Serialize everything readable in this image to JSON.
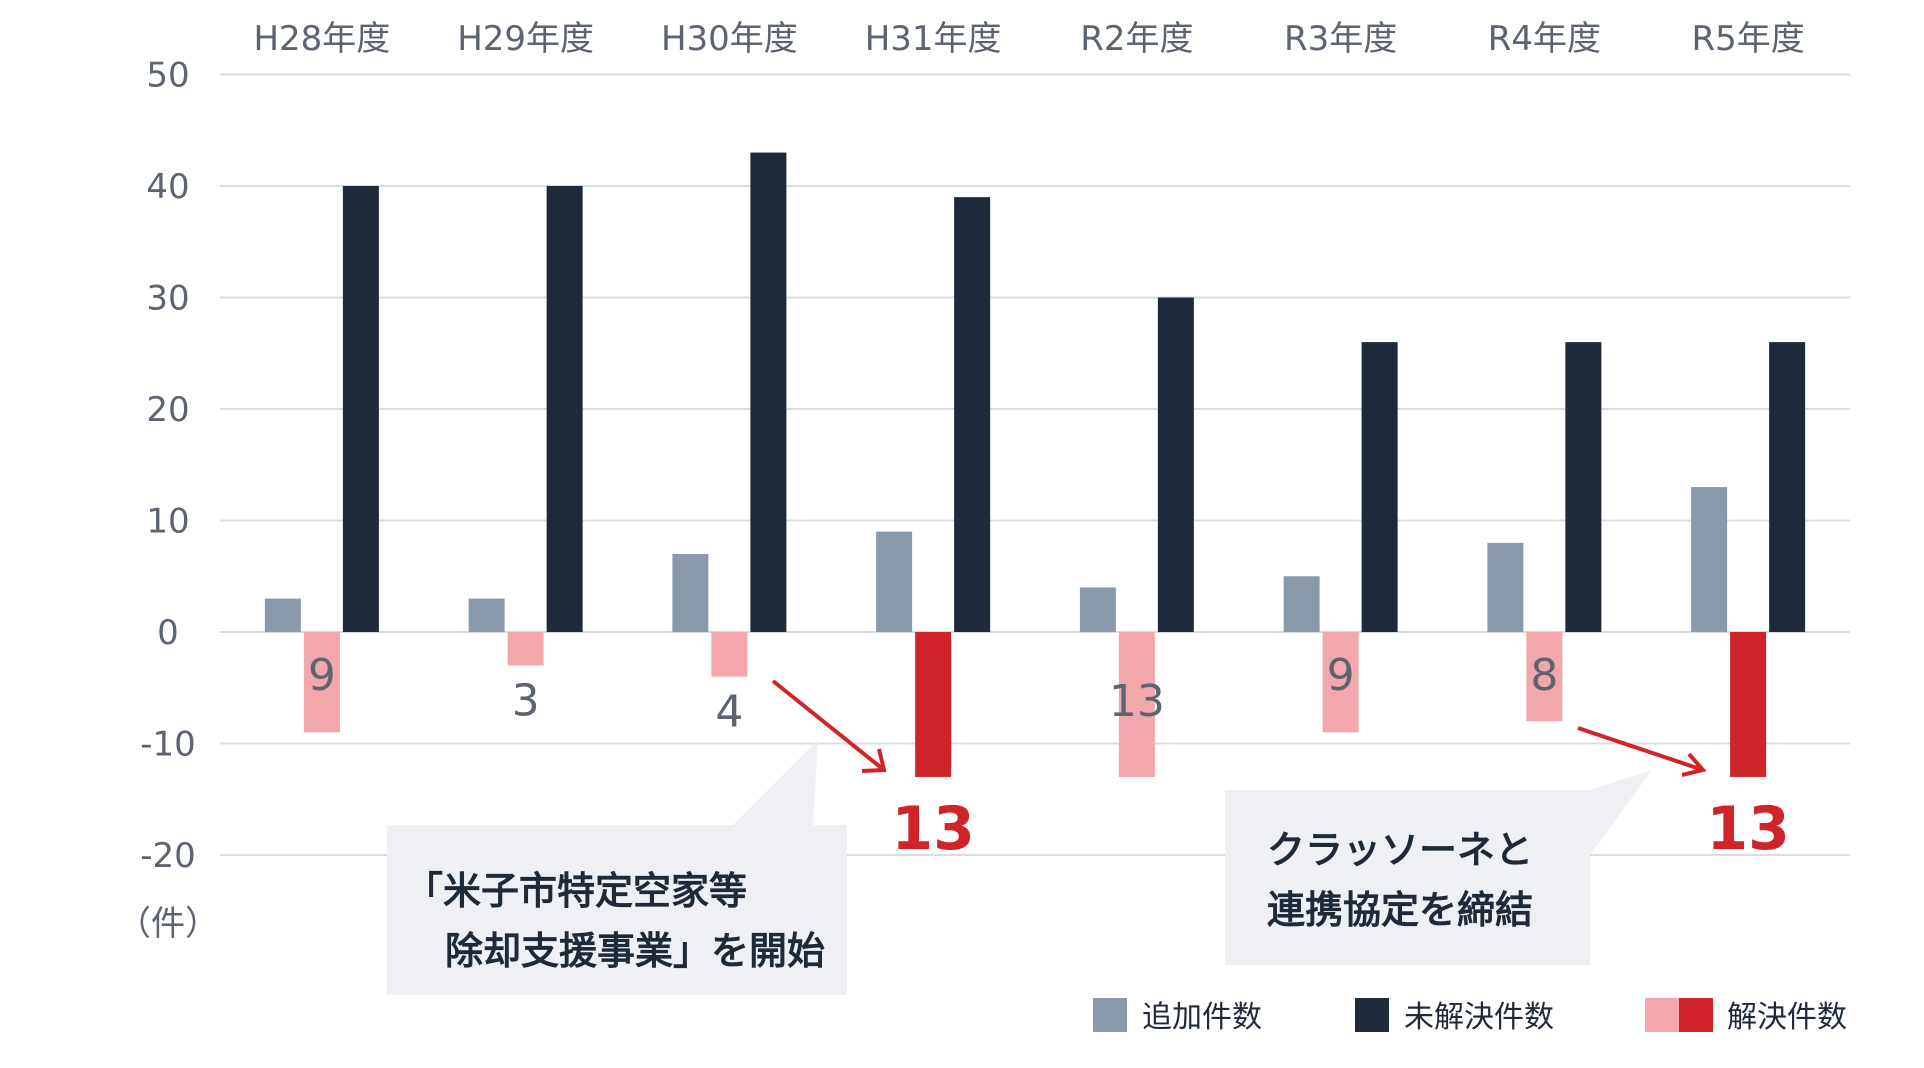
{
  "chart_data": {
    "type": "bar",
    "categories": [
      "H28年度",
      "H29年度",
      "H30年度",
      "H31年度",
      "R2年度",
      "R3年度",
      "R4年度",
      "R5年度"
    ],
    "series": [
      {
        "name": "追加件数",
        "values": [
          3,
          3,
          7,
          9,
          4,
          5,
          8,
          13
        ],
        "color": "#8b9aab"
      },
      {
        "name": "解決件数",
        "values": [
          -9,
          -3,
          -4,
          -13,
          -13,
          -9,
          -8,
          -13
        ],
        "color": "#f1a7ab",
        "highlight_color": "#d1232a",
        "highlight_categories": [
          "H31年度",
          "R5年度"
        ]
      },
      {
        "name": "未解決件数",
        "values": [
          40,
          40,
          43,
          39,
          30,
          26,
          26,
          26
        ],
        "color": "#1e2a39"
      }
    ],
    "data_labels": [
      "9",
      "3",
      "4",
      "13",
      "13",
      "9",
      "8",
      "13"
    ],
    "yticks": [
      "50",
      "40",
      "30",
      "20",
      "10",
      "0",
      "-10",
      "-20"
    ],
    "ylim": [
      -20,
      50
    ],
    "yunit": "（件）",
    "grid": true,
    "legend_position": "bottom-right",
    "legend": [
      "追加件数",
      "未解決件数",
      "解決件数"
    ]
  },
  "annotations": {
    "callout1": [
      "「米子市特定空家等",
      "除却支援事業」を開始"
    ],
    "callout2": [
      "クラッソーネと",
      "連携協定を締結"
    ]
  },
  "colors": {
    "accent_red": "#d1232a",
    "arrow": "#d1232a",
    "grid": "#d9dde2",
    "callout_bg": "#eef0f3"
  }
}
